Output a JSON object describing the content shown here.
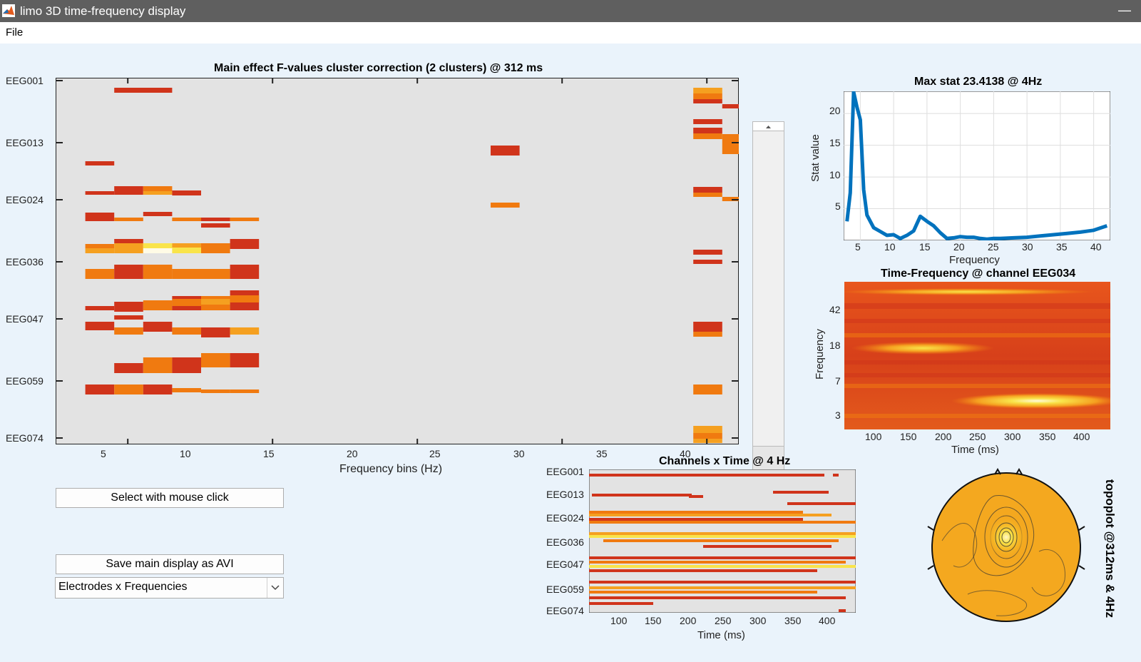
{
  "window": {
    "title": "limo 3D time-frequency display"
  },
  "menu": {
    "file": "File"
  },
  "main_plot": {
    "title": "Main effect F-values cluster correction (2 clusters) @ 312 ms",
    "xlabel": "Frequency bins (Hz)",
    "xticks": [
      "5",
      "10",
      "15",
      "20",
      "25",
      "30",
      "35",
      "40"
    ],
    "yticks": [
      "EEG001",
      "EEG013",
      "EEG024",
      "EEG036",
      "EEG047",
      "EEG059",
      "EEG074"
    ]
  },
  "max_stat_plot": {
    "title": "Max stat 23.4138 @ 4Hz",
    "xlabel": "Frequency",
    "ylabel": "Stat value",
    "xticks": [
      "5",
      "10",
      "15",
      "20",
      "25",
      "30",
      "35",
      "40"
    ],
    "yticks": [
      "5",
      "10",
      "15",
      "20"
    ]
  },
  "tf_plot": {
    "title": "Time-Frequency @ channel EEG034",
    "xlabel": "Time (ms)",
    "ylabel": "Frequency",
    "xticks": [
      "100",
      "150",
      "200",
      "250",
      "300",
      "350",
      "400"
    ],
    "yticks": [
      "42",
      "18",
      "7",
      "3"
    ]
  },
  "ct_plot": {
    "title": "Channels x Time @ 4 Hz",
    "xlabel": "Time (ms)",
    "xticks": [
      "100",
      "150",
      "200",
      "250",
      "300",
      "350",
      "400"
    ],
    "yticks": [
      "EEG001",
      "EEG013",
      "EEG024",
      "EEG036",
      "EEG047",
      "EEG059",
      "EEG074"
    ]
  },
  "topoplot": {
    "label": "topoplot @312ms & 4Hz"
  },
  "controls": {
    "select_button": "Select with mouse click",
    "dropdown_value": "Electrodes x Frequencies",
    "save_button": "Save main display as AVI"
  },
  "colors": {
    "heat_dark": "#d0341b",
    "heat_mid": "#f07a10",
    "heat_orange": "#f5a020",
    "heat_yellow": "#f9e44a",
    "line_blue": "#0072bd",
    "plot_bg": "#e3e3e3"
  },
  "chart_data": [
    {
      "type": "line",
      "title": "Max stat 23.4138 @ 4Hz",
      "xlabel": "Frequency",
      "ylabel": "Stat value",
      "xlim": [
        2.5,
        42.5
      ],
      "ylim": [
        0,
        23.5
      ],
      "series": [
        {
          "name": "max stat",
          "x": [
            3,
            3.5,
            4,
            4.5,
            5,
            5.5,
            6,
            7,
            8,
            9,
            10,
            11,
            12,
            13,
            14,
            15,
            16,
            17,
            18,
            19,
            20,
            21,
            22,
            23,
            24,
            25,
            26,
            28,
            30,
            32,
            34,
            36,
            38,
            40,
            42
          ],
          "values": [
            3.0,
            7.5,
            23.4,
            21.0,
            19.0,
            8.0,
            4.0,
            2.0,
            1.4,
            0.8,
            0.9,
            0.3,
            0.8,
            1.5,
            3.8,
            3.0,
            2.3,
            1.2,
            0.3,
            0.4,
            0.6,
            0.5,
            0.5,
            0.3,
            0.2,
            0.3,
            0.3,
            0.4,
            0.5,
            0.7,
            0.9,
            1.1,
            1.3,
            1.6,
            2.3
          ]
        }
      ]
    }
  ]
}
